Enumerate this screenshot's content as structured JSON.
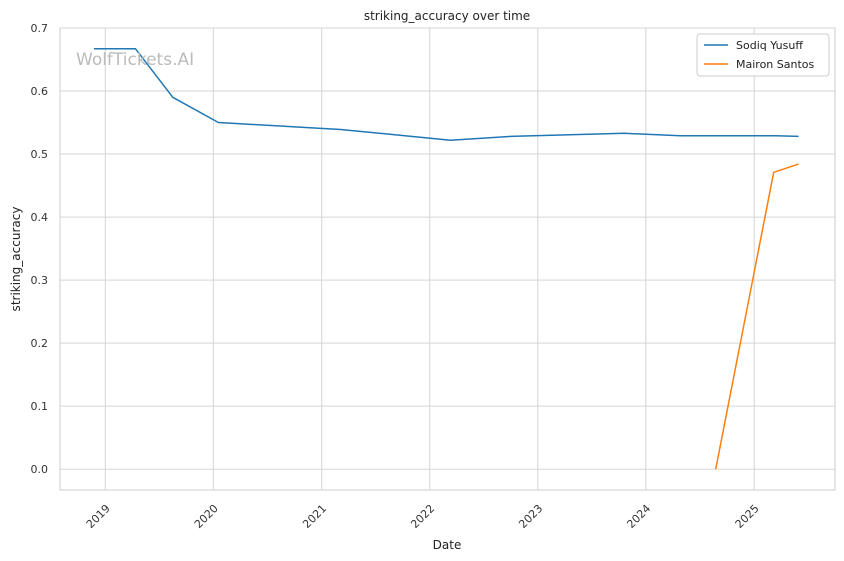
{
  "watermark": "WolfTickets.AI",
  "chart_data": {
    "type": "line",
    "title": "striking_accuracy over time",
    "xlabel": "Date",
    "ylabel": "striking_accuracy",
    "x_axis": "date",
    "xlim": [
      "2018-08-01",
      "2025-10-01"
    ],
    "ylim": [
      -0.033,
      0.7
    ],
    "x_ticks": [
      "2019",
      "2020",
      "2021",
      "2022",
      "2023",
      "2024",
      "2025"
    ],
    "y_ticks": [
      "0.0",
      "0.1",
      "0.2",
      "0.3",
      "0.4",
      "0.5",
      "0.6",
      "0.7"
    ],
    "grid": true,
    "legend_position": "top-right",
    "series": [
      {
        "name": "Sodiq Yusuff",
        "color": "#1f77b4",
        "points": [
          {
            "x": "2018-11-24",
            "y": 0.667
          },
          {
            "x": "2019-04-13",
            "y": 0.667
          },
          {
            "x": "2019-08-17",
            "y": 0.59
          },
          {
            "x": "2020-01-18",
            "y": 0.55
          },
          {
            "x": "2021-03-06",
            "y": 0.539
          },
          {
            "x": "2022-03-12",
            "y": 0.522
          },
          {
            "x": "2022-10-01",
            "y": 0.528
          },
          {
            "x": "2023-10-21",
            "y": 0.533
          },
          {
            "x": "2024-04-27",
            "y": 0.529
          },
          {
            "x": "2025-03-15",
            "y": 0.529
          },
          {
            "x": "2025-05-31",
            "y": 0.528
          }
        ]
      },
      {
        "name": "Mairon Santos",
        "color": "#ff7f0e",
        "points": [
          {
            "x": "2024-08-24",
            "y": 0.0
          },
          {
            "x": "2025-03-08",
            "y": 0.471
          },
          {
            "x": "2025-05-31",
            "y": 0.484
          }
        ]
      }
    ]
  }
}
